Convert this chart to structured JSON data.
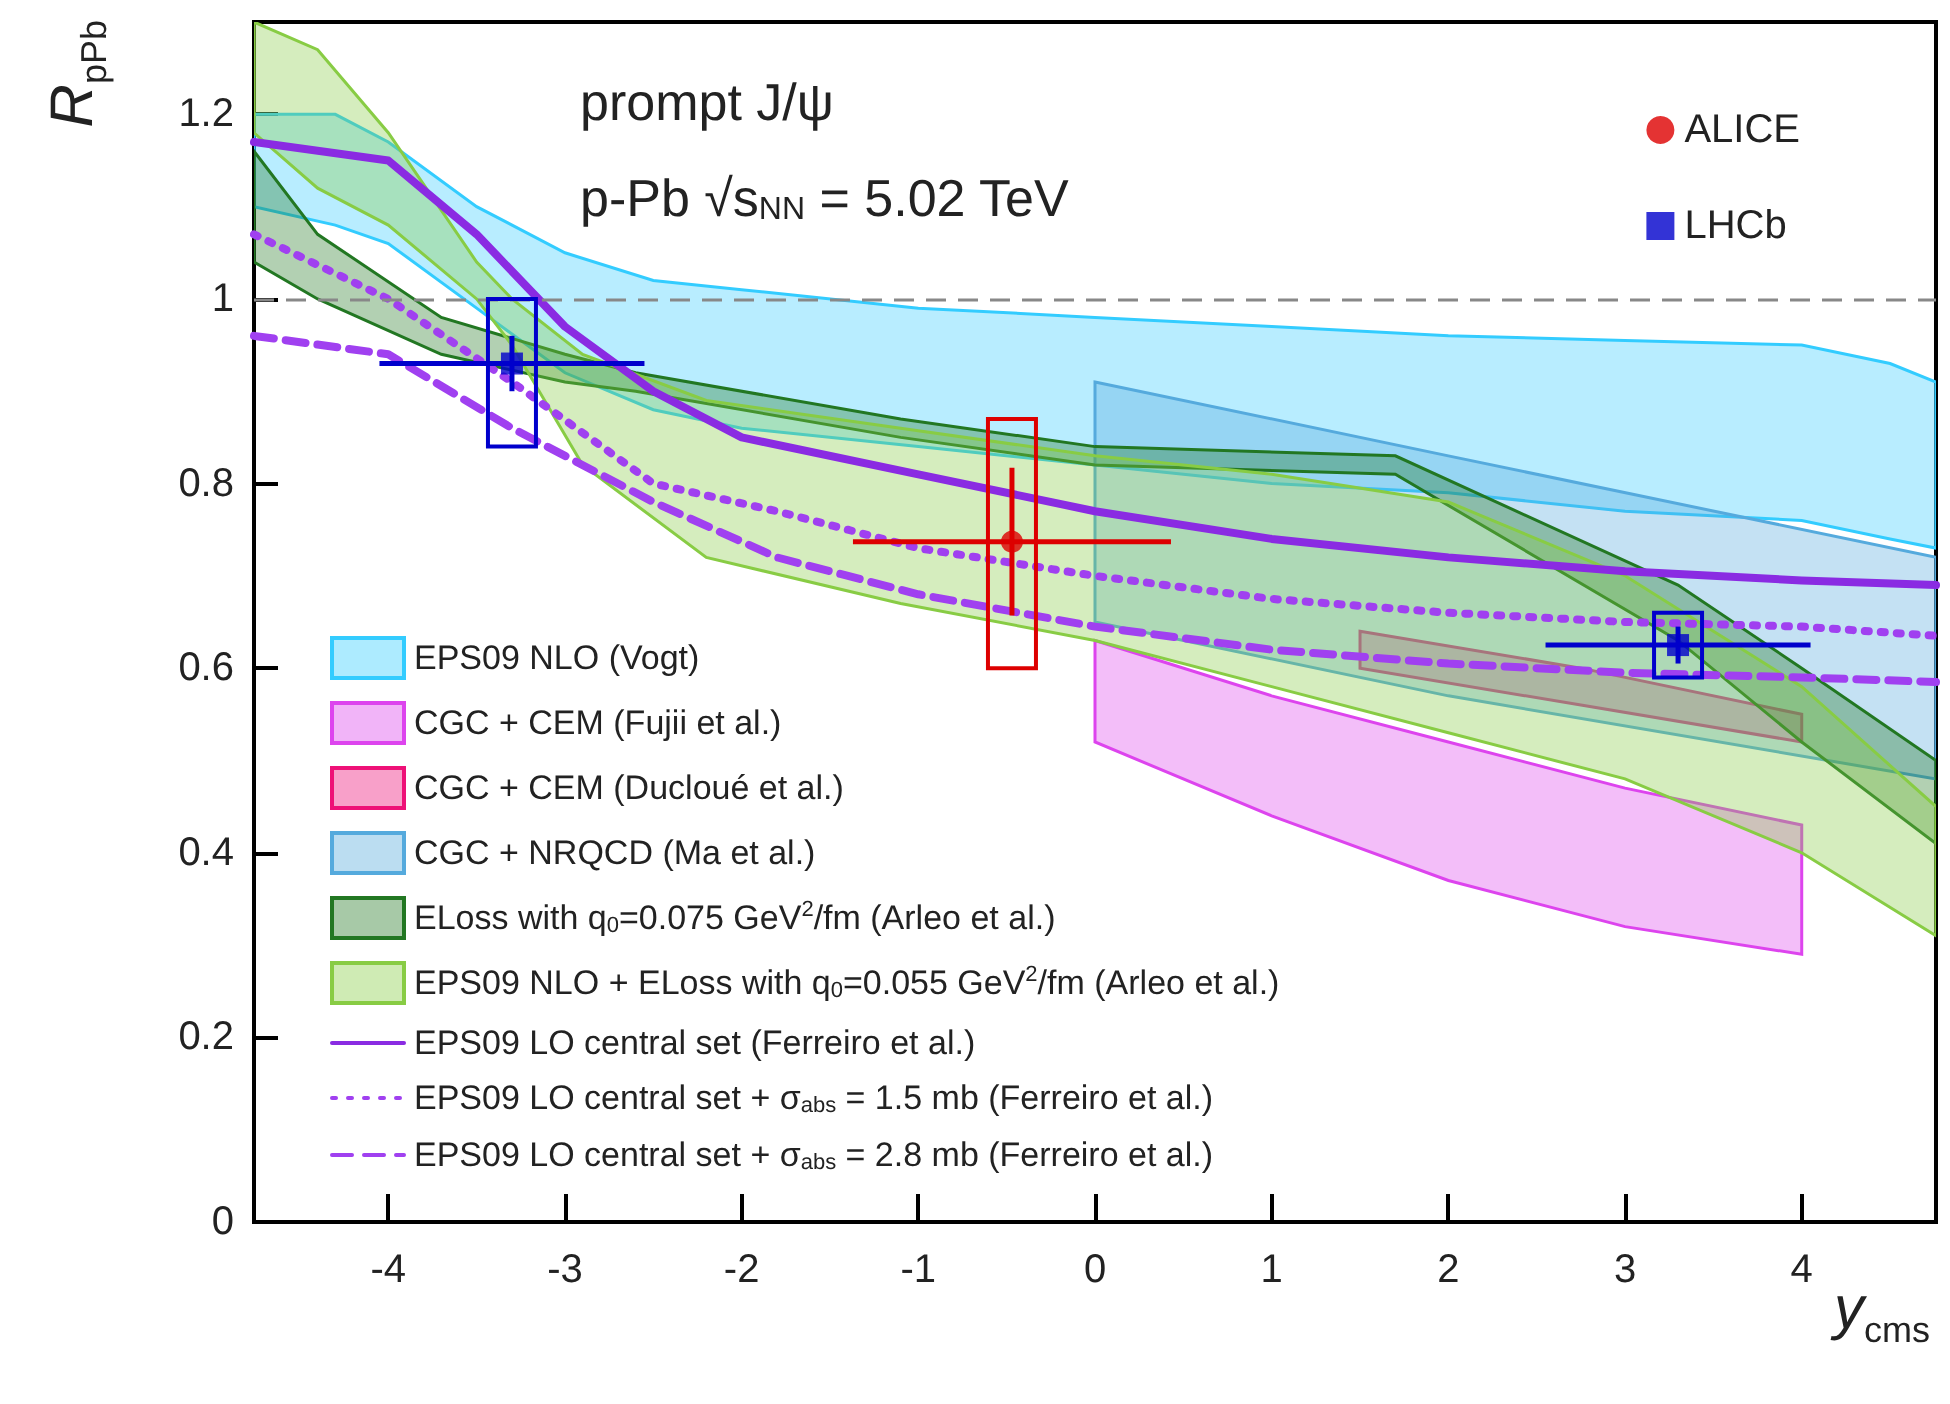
{
  "chart_data": {
    "type": "line",
    "xlabel": "y$_{cms}$",
    "ylabel": "R$_{pPb}$",
    "xlim": [
      -4.76,
      4.76
    ],
    "ylim": [
      0,
      1.3
    ],
    "xticks": [
      -4,
      -3,
      -2,
      -1,
      0,
      1,
      2,
      3,
      4
    ],
    "yticks": [
      0,
      0.2,
      0.4,
      0.6,
      0.8,
      1,
      1.2
    ],
    "grid": false,
    "legend": "bottom left",
    "annotations": [
      "prompt J/ψ",
      "p-Pb √s$_{NN}$ = 5.02 TeV"
    ],
    "ref_lines": [
      {
        "axis": "y",
        "value": 1,
        "color": "#888888",
        "line_style": "dashed"
      }
    ],
    "series": [
      {
        "type": "area",
        "name": "EPS09 NLO (Vogt)",
        "color": "#33ccff",
        "x": [
          -4.76,
          -4.3,
          -4,
          -3.5,
          -3,
          -2.5,
          -2,
          -1,
          0,
          1,
          2,
          3,
          4,
          4.5,
          4.76
        ],
        "values": [
          null,
          null,
          null,
          null,
          null,
          null,
          null,
          null,
          null,
          null,
          null,
          null,
          null,
          null,
          null
        ],
        "upper": [
          1.2,
          1.2,
          1.17,
          1.1,
          1.05,
          1.02,
          1.01,
          0.99,
          0.98,
          0.97,
          0.96,
          0.955,
          0.95,
          0.93,
          0.91
        ],
        "lower": [
          1.1,
          1.08,
          1.06,
          0.99,
          0.92,
          0.88,
          0.86,
          0.84,
          0.82,
          0.8,
          0.79,
          0.77,
          0.76,
          0.74,
          0.73
        ]
      },
      {
        "type": "area",
        "name": "CGC + CEM (Fujii et al.)",
        "color": "#dd44ee",
        "x": [
          0,
          1,
          2,
          3,
          4
        ],
        "values": [
          null,
          null,
          null,
          null,
          null
        ],
        "upper": [
          0.63,
          0.57,
          0.52,
          0.47,
          0.43
        ],
        "lower": [
          0.52,
          0.44,
          0.37,
          0.32,
          0.29
        ]
      },
      {
        "type": "area",
        "name": "CGC + CEM (Ducloué et al.)",
        "color": "#ee1177",
        "x": [
          1.5,
          2.75,
          4
        ],
        "values": [
          null,
          null,
          null
        ],
        "upper": [
          0.64,
          0.6,
          0.55
        ],
        "lower": [
          0.6,
          0.56,
          0.52
        ]
      },
      {
        "type": "area",
        "name": "CGC + NRQCD (Ma et al.)",
        "color": "#55aadd",
        "x": [
          0,
          2,
          4.76
        ],
        "values": [
          null,
          null,
          null
        ],
        "upper": [
          0.91,
          0.83,
          0.72
        ],
        "lower": [
          0.65,
          0.57,
          0.48
        ]
      },
      {
        "type": "area",
        "name": "ELoss with q$_{0}$=0.075 GeV$^{2}$/fm (Arleo et al.)",
        "color": "#227722",
        "x": [
          -4.76,
          -4.4,
          -3.7,
          -3,
          -2.6,
          -1.1,
          0,
          1.7,
          3.3,
          4,
          4.76
        ],
        "values": [
          null,
          null,
          null,
          null,
          null,
          null,
          null,
          null,
          null,
          null,
          null
        ],
        "upper": [
          1.16,
          1.07,
          0.98,
          0.94,
          0.92,
          0.87,
          0.84,
          0.83,
          0.69,
          0.6,
          0.5
        ],
        "lower": [
          1.04,
          1,
          0.94,
          0.91,
          0.9,
          0.85,
          0.82,
          0.81,
          0.63,
          0.52,
          0.41
        ]
      },
      {
        "type": "area",
        "name": "EPS09 NLO + ELoss with q$_{0}$=0.055 GeV$^{2}$/fm (Arleo et al.)",
        "color": "#88cc44",
        "x": [
          -4.76,
          -4.4,
          -4,
          -3.5,
          -3.3,
          -2.9,
          -2.2,
          -1.1,
          0,
          1,
          2,
          3,
          4,
          4.76
        ],
        "values": [
          null,
          null,
          null,
          null,
          null,
          null,
          null,
          null,
          null,
          null,
          null,
          null,
          null,
          null
        ],
        "upper": [
          1.3,
          1.27,
          1.18,
          1.04,
          1,
          0.94,
          0.89,
          0.86,
          0.83,
          0.81,
          0.78,
          0.7,
          0.58,
          0.45
        ],
        "lower": [
          1.18,
          1.12,
          1.08,
          1,
          0.95,
          0.82,
          0.72,
          0.67,
          0.63,
          0.58,
          0.53,
          0.48,
          0.4,
          0.31
        ]
      },
      {
        "name": "EPS09 LO central set (Ferreiro et al.)",
        "color": "#8a2be2",
        "line_style": "solid",
        "marker": "none",
        "x": [
          -4.76,
          -4,
          -3.5,
          -3,
          -2.5,
          -2,
          -1,
          0,
          1,
          2,
          3,
          4,
          4.76
        ],
        "values": [
          1.17,
          1.15,
          1.07,
          0.97,
          0.9,
          0.85,
          0.81,
          0.77,
          0.74,
          0.72,
          0.705,
          0.695,
          0.69
        ]
      },
      {
        "name": "EPS09 LO central set + σ$_{abs}$ = 1.5 mb (Ferreiro et al.)",
        "color": "#a040f0",
        "line_style": "dotted",
        "marker": "none",
        "x": [
          -4.76,
          -4,
          -3.3,
          -2.5,
          -1.8,
          -1,
          0,
          1,
          2,
          3,
          4,
          4.76
        ],
        "values": [
          1.07,
          1,
          0.91,
          0.8,
          0.77,
          0.73,
          0.7,
          0.675,
          0.66,
          0.65,
          0.645,
          0.635
        ]
      },
      {
        "name": "EPS09 LO central set + σ$_{abs}$ = 2.8 mb (Ferreiro et al.)",
        "color": "#a040f0",
        "line_style": "dashed",
        "marker": "none",
        "x": [
          -4.76,
          -4,
          -3.3,
          -2.5,
          -1.8,
          -1,
          0,
          1,
          2,
          3,
          4,
          4.76
        ],
        "values": [
          0.96,
          0.94,
          0.86,
          0.78,
          0.72,
          0.68,
          0.645,
          0.62,
          0.605,
          0.595,
          0.59,
          0.585
        ]
      },
      {
        "type": "bar",
        "color": "#dd0000",
        "x": [
          -0.47
        ],
        "base": [
          0.6
        ],
        "values": [
          0.27
        ]
      },
      {
        "type": "bar",
        "color": "#0000cc",
        "x": [
          -3.3,
          3.3
        ],
        "base": [
          0.84,
          0.59
        ],
        "values": [
          0.16,
          0.07
        ]
      },
      {
        "type": "scatter",
        "name": "ALICE",
        "color": "#dd0000",
        "marker": "circle",
        "x": [
          -0.47
        ],
        "values": [
          0.737
        ],
        "errors": [
          0.08
        ],
        "xerrors": [
          0.9
        ]
      },
      {
        "type": "scatter",
        "name": "LHCb",
        "color": "#0000cc",
        "marker": "square",
        "x": [
          -3.3,
          3.3
        ],
        "values": [
          0.93,
          0.625
        ],
        "errors": [
          0.03,
          0.02
        ],
        "xerrors": [
          0.75,
          0.75
        ]
      }
    ]
  }
}
